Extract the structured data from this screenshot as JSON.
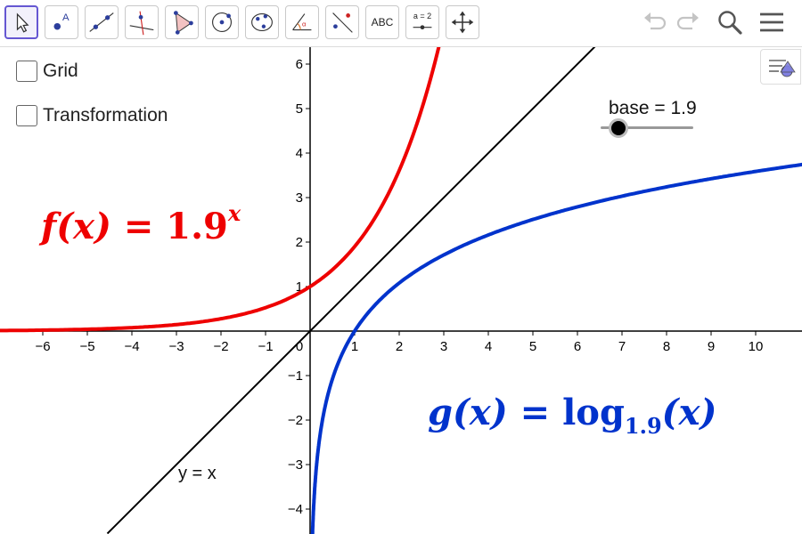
{
  "toolbar": {
    "tools": [
      {
        "name": "move-tool",
        "label": ""
      },
      {
        "name": "point-tool",
        "label": ""
      },
      {
        "name": "line-tool",
        "label": ""
      },
      {
        "name": "perpendicular-tool",
        "label": ""
      },
      {
        "name": "polygon-tool",
        "label": ""
      },
      {
        "name": "circle-tool",
        "label": ""
      },
      {
        "name": "ellipse-tool",
        "label": ""
      },
      {
        "name": "angle-tool",
        "label": ""
      },
      {
        "name": "reflect-tool",
        "label": ""
      },
      {
        "name": "text-tool",
        "label": "ABC"
      },
      {
        "name": "slider-tool",
        "label": "a = 2"
      },
      {
        "name": "move-graphics-tool",
        "label": ""
      }
    ],
    "active_tool": "move-tool",
    "right_icons": [
      "undo-icon",
      "redo-icon",
      "search-icon",
      "menu-icon"
    ]
  },
  "checkboxes": {
    "grid": {
      "label": "Grid",
      "checked": false
    },
    "transformation": {
      "label": "Transformation",
      "checked": false
    }
  },
  "slider": {
    "label": "base = 1.9",
    "name": "base",
    "value": 1.9,
    "min": 1.1,
    "max": 5
  },
  "functions": {
    "f": {
      "name": "f(x)",
      "eq": "=",
      "base": "1.9",
      "exp": "x",
      "color": "#ee0000"
    },
    "g": {
      "name": "g(x)",
      "eq": "=",
      "op": "log",
      "base": "1.9",
      "arg": "(x)",
      "color": "#0033cc"
    }
  },
  "line_label": "y = x",
  "axes": {
    "x_ticks": [
      "−6",
      "−5",
      "−4",
      "−3",
      "−2",
      "−1",
      "0",
      "1",
      "2",
      "3",
      "4",
      "5",
      "6",
      "7",
      "8",
      "9",
      "10"
    ],
    "y_ticks": [
      "6",
      "5",
      "4",
      "3",
      "2",
      "1",
      "−1",
      "−2",
      "−3",
      "−4"
    ]
  },
  "colors": {
    "accent": "#6557d2",
    "f_curve": "#ee0000",
    "g_curve": "#0033cc",
    "line": "#000000"
  }
}
